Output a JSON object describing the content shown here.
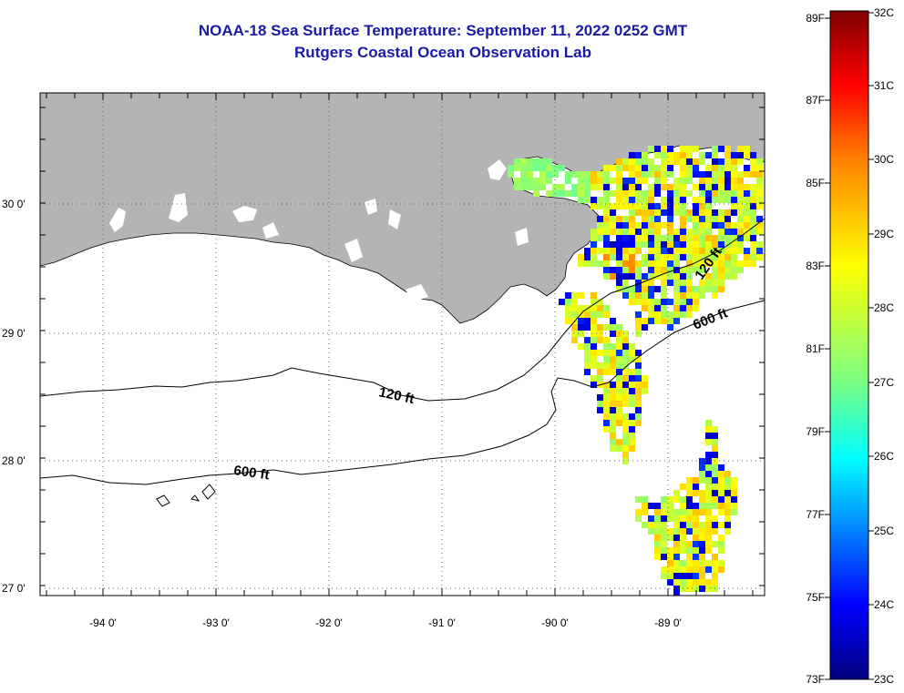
{
  "title": "NOAA-18 Sea Surface Temperature:  September 11, 2022 0252 GMT",
  "subtitle": "Rutgers Coastal Ocean Observation Lab",
  "map": {
    "lon_labels": [
      "-94 0'",
      "-93 0'",
      "-92 0'",
      "-91 0'",
      "-90 0'",
      "-89 0'"
    ],
    "lat_labels": [
      "30 0'",
      "29 0'",
      "28 0'",
      "27 0'"
    ],
    "contours": {
      "shelf_120": "120 ft",
      "shelf_600": "600 ft",
      "east_120": "120 ft",
      "east_600": "600 ft"
    },
    "colors": {
      "land": "#b4b4b4",
      "cloud": "#ffffff",
      "ocean_nodata": "#ffffff"
    }
  },
  "colorbar": {
    "f_labels": [
      "89F",
      "87F",
      "85F",
      "83F",
      "81F",
      "79F",
      "77F",
      "75F",
      "73F"
    ],
    "c_labels": [
      "32C",
      "31C",
      "30C",
      "29C",
      "28C",
      "27C",
      "26C",
      "25C",
      "24C",
      "23C"
    ],
    "min_c": 23,
    "max_c": 32
  }
}
